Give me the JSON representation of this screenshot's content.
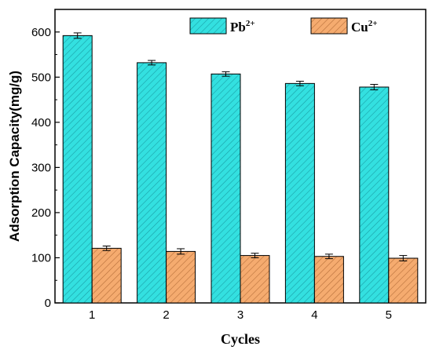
{
  "chart_data": {
    "type": "bar",
    "categories": [
      "1",
      "2",
      "3",
      "4",
      "5"
    ],
    "series": [
      {
        "name": "Pb²⁺",
        "legend_base": "Pb",
        "legend_sup": "2+",
        "values": [
          592,
          532,
          507,
          486,
          478
        ],
        "errors": [
          6,
          5,
          5,
          5,
          6
        ],
        "color": "#33e0e0",
        "hatch_color": "#1a9fa6"
      },
      {
        "name": "Cu²⁺",
        "legend_base": "Cu",
        "legend_sup": "2+",
        "values": [
          121,
          114,
          105,
          103,
          99
        ],
        "errors": [
          5,
          6,
          5,
          5,
          6
        ],
        "color": "#f5ab6f",
        "hatch_color": "#b8703a"
      }
    ],
    "title": "",
    "xlabel": "Cycles",
    "ylabel": "Adsorption Capacity(mg/g)",
    "ylim": [
      0,
      650
    ],
    "yticks": [
      0,
      100,
      200,
      300,
      400,
      500,
      600
    ],
    "grid": false,
    "legend_position": "top"
  }
}
